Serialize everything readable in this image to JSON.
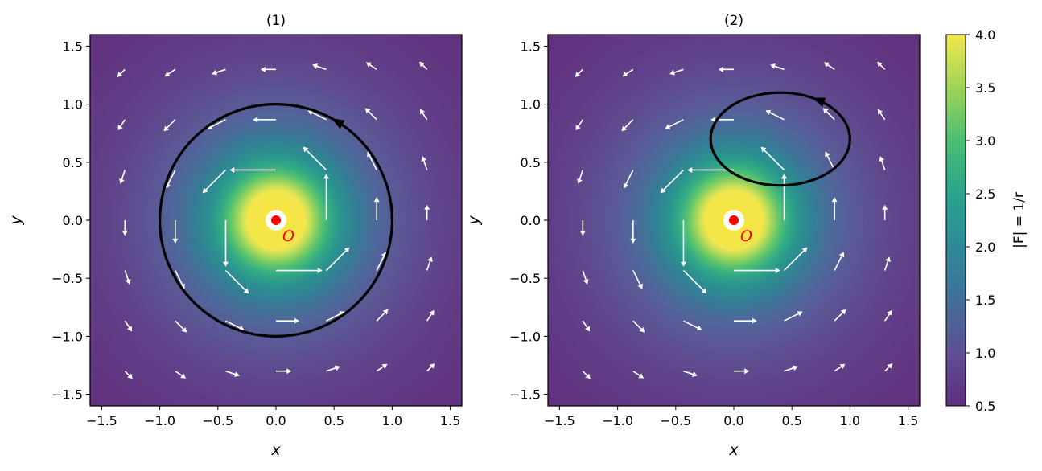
{
  "chart_data": [
    {
      "type": "heatmap",
      "title": "(1)",
      "xlabel": "x",
      "ylabel": "y",
      "xlim": [
        -1.6,
        1.6
      ],
      "ylim": [
        -1.6,
        1.6
      ],
      "xticks": [
        -1.5,
        -1.0,
        -0.5,
        0.0,
        0.5,
        1.0,
        1.5
      ],
      "yticks": [
        -1.5,
        -1.0,
        -0.5,
        0.0,
        0.5,
        1.0,
        1.5
      ],
      "xtick_labels": [
        "−1.5",
        "−1.0",
        "−0.5",
        "0.0",
        "0.5",
        "1.0",
        "1.5"
      ],
      "ytick_labels": [
        "−1.5",
        "−1.0",
        "−0.5",
        "0.0",
        "0.5",
        "1.0",
        "1.5"
      ],
      "field": "|F| = 1/r, vector field tangential (counter-clockwise) around origin",
      "quiver_grid": [
        -1.3,
        -0.867,
        -0.433,
        0.0,
        0.433,
        0.867,
        1.3
      ],
      "loop": {
        "shape": "circle",
        "cx": 0.0,
        "cy": 0.0,
        "r": 1.0,
        "direction": "counter-clockwise"
      },
      "origin": {
        "x": 0.0,
        "y": 0.0,
        "label": "O"
      }
    },
    {
      "type": "heatmap",
      "title": "(2)",
      "xlabel": "x",
      "ylabel": "y",
      "xlim": [
        -1.6,
        1.6
      ],
      "ylim": [
        -1.6,
        1.6
      ],
      "xticks": [
        -1.5,
        -1.0,
        -0.5,
        0.0,
        0.5,
        1.0,
        1.5
      ],
      "yticks": [
        -1.5,
        -1.0,
        -0.5,
        0.0,
        0.5,
        1.0,
        1.5
      ],
      "xtick_labels": [
        "−1.5",
        "−1.0",
        "−0.5",
        "0.0",
        "0.5",
        "1.0",
        "1.5"
      ],
      "ytick_labels": [
        "−1.5",
        "−1.0",
        "−0.5",
        "0.0",
        "0.5",
        "1.0",
        "1.5"
      ],
      "field": "|F| = 1/r, vector field tangential (counter-clockwise) around origin",
      "quiver_grid": [
        -1.3,
        -0.867,
        -0.433,
        0.0,
        0.433,
        0.867,
        1.3
      ],
      "loop": {
        "shape": "ellipse",
        "cx": 0.4,
        "cy": 0.7,
        "rx": 0.6,
        "ry": 0.4,
        "direction": "counter-clockwise"
      },
      "origin": {
        "x": 0.0,
        "y": 0.0,
        "label": "O"
      }
    }
  ],
  "colorbar": {
    "label": "|F| = 1/r",
    "range": [
      0.5,
      4.0
    ],
    "ticks": [
      0.5,
      1.0,
      1.5,
      2.0,
      2.5,
      3.0,
      3.5,
      4.0
    ],
    "tick_labels": [
      "0.5",
      "1.0",
      "1.5",
      "2.0",
      "2.5",
      "3.0",
      "3.5",
      "4.0"
    ],
    "colormap": "viridis"
  },
  "colors": {
    "loop": "#000000",
    "origin_marker": "#ff0000",
    "arrows": "#ffffff"
  }
}
